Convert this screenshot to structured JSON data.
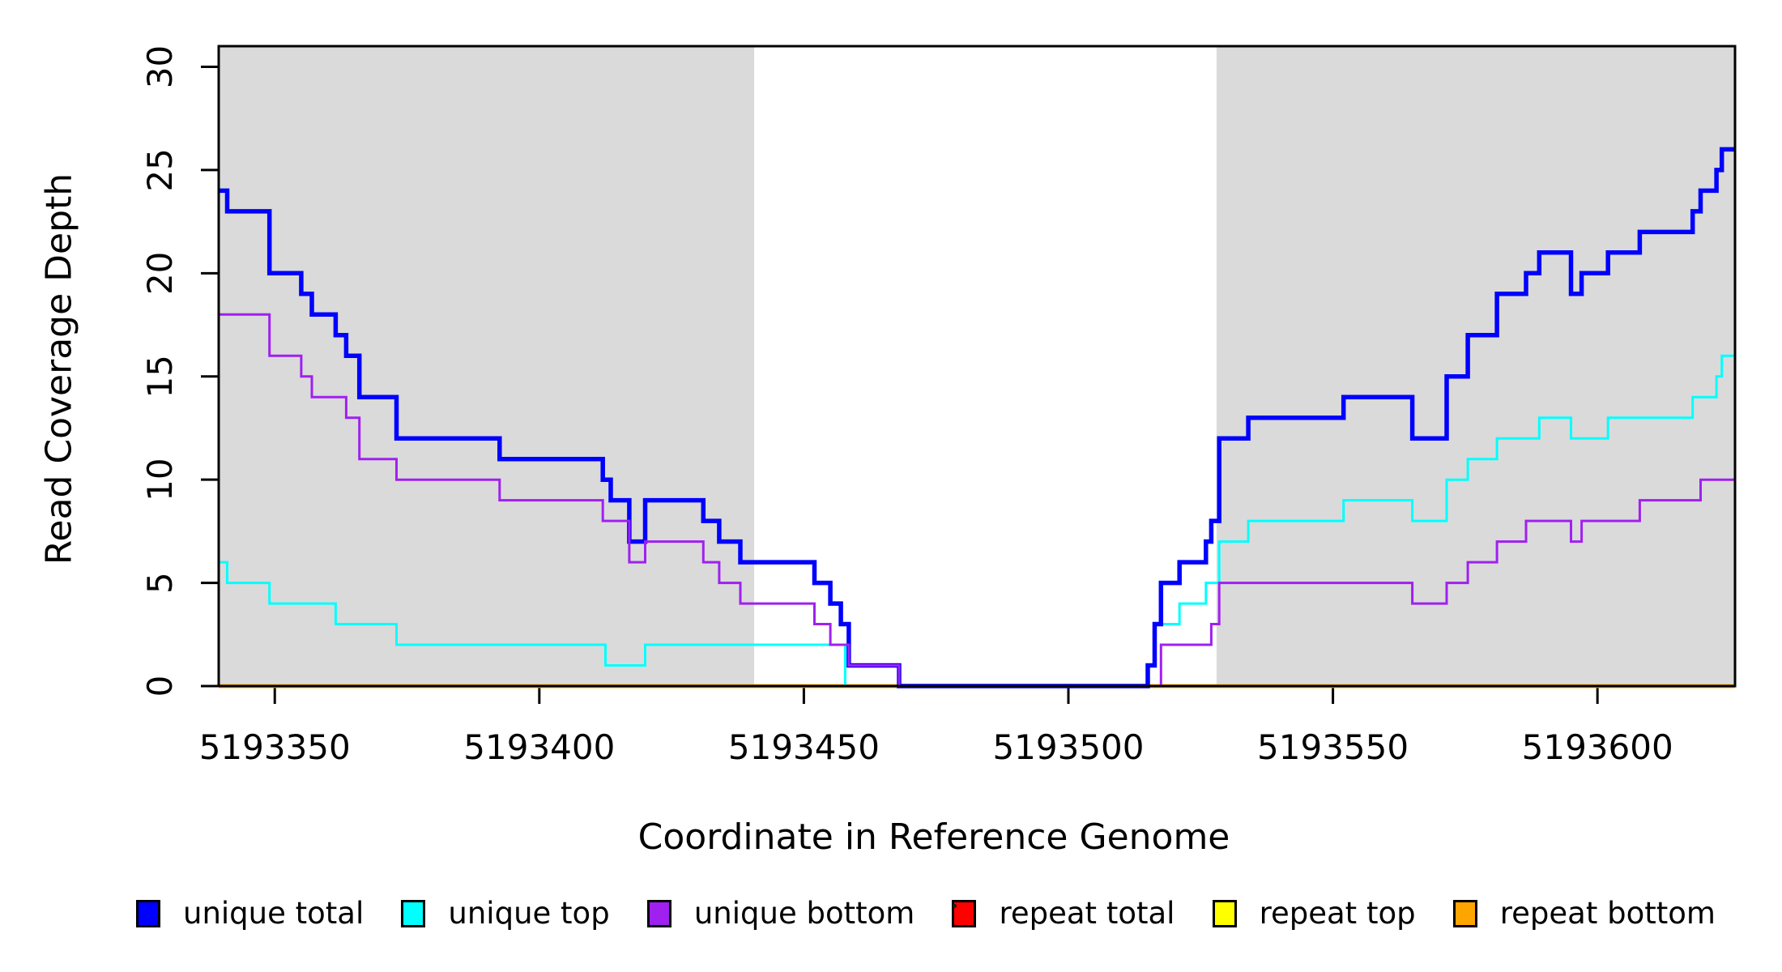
{
  "figure": {
    "title": "",
    "y_axis": {
      "label": "Read Coverage Depth",
      "ticks": [
        0,
        5,
        10,
        15,
        20,
        25,
        30
      ],
      "range": [
        0,
        31
      ]
    },
    "x_axis": {
      "label": "Coordinate in Reference Genome",
      "ticks": [
        5193350,
        5193400,
        5193450,
        5193500,
        5193550,
        5193600
      ],
      "range": [
        5193339.4,
        5193626
      ]
    },
    "legend": [
      {
        "label": "unique total",
        "color": "#0000FF"
      },
      {
        "label": "unique top",
        "color": "#00FFFF"
      },
      {
        "label": "unique bottom",
        "color": "#A020F0"
      },
      {
        "label": "repeat total",
        "color": "#FF0000"
      },
      {
        "label": "repeat top",
        "color": "#FFFF00"
      },
      {
        "label": "repeat bottom",
        "color": "#FFA500"
      }
    ]
  },
  "chart_data": {
    "type": "line",
    "subtype": "step-after",
    "title": "",
    "xlabel": "Coordinate in Reference Genome",
    "ylabel": "Read Coverage Depth",
    "xlim": [
      5193339.4,
      5193626
    ],
    "ylim": [
      0,
      31
    ],
    "grid": false,
    "legend_position": "bottom",
    "shaded_regions": {
      "color": "#DADADA",
      "comment": "gray background bands marking unique-mapping flank regions",
      "x_ranges": [
        [
          5193339.4,
          5193440.6
        ],
        [
          5193528,
          5193626
        ]
      ]
    },
    "draw_order": [
      "repeat total",
      "repeat top",
      "repeat bottom",
      "unique top",
      "unique total",
      "unique bottom"
    ],
    "series": [
      {
        "name": "unique total",
        "color": "#0000FF",
        "line_width": 5.5,
        "steps": [
          [
            5193339.4,
            24
          ],
          [
            5193341,
            23
          ],
          [
            5193349,
            20
          ],
          [
            5193355,
            19
          ],
          [
            5193357,
            18
          ],
          [
            5193361.5,
            17
          ],
          [
            5193363.5,
            16
          ],
          [
            5193366,
            14
          ],
          [
            5193373,
            12
          ],
          [
            5193392.5,
            11
          ],
          [
            5193412,
            10
          ],
          [
            5193413.5,
            9
          ],
          [
            5193417,
            7
          ],
          [
            5193420,
            9
          ],
          [
            5193431,
            8
          ],
          [
            5193434,
            7
          ],
          [
            5193438,
            6
          ],
          [
            5193452,
            5
          ],
          [
            5193455,
            4
          ],
          [
            5193457,
            3
          ],
          [
            5193458.5,
            1
          ],
          [
            5193468,
            0
          ],
          [
            5193515,
            1
          ],
          [
            5193516.3,
            3
          ],
          [
            5193517.5,
            5
          ],
          [
            5193521,
            6
          ],
          [
            5193526,
            7
          ],
          [
            5193527,
            8
          ],
          [
            5193528.5,
            12
          ],
          [
            5193534,
            13
          ],
          [
            5193552,
            14
          ],
          [
            5193565,
            12
          ],
          [
            5193571.5,
            15
          ],
          [
            5193575.5,
            17
          ],
          [
            5193581,
            19
          ],
          [
            5193586.5,
            20
          ],
          [
            5193589,
            21
          ],
          [
            5193595,
            19
          ],
          [
            5193597,
            20
          ],
          [
            5193602,
            21
          ],
          [
            5193608,
            22
          ],
          [
            5193618,
            23
          ],
          [
            5193619.5,
            24
          ],
          [
            5193622.5,
            25
          ],
          [
            5193623.5,
            26
          ]
        ]
      },
      {
        "name": "unique top",
        "color": "#00FFFF",
        "line_width": 3,
        "steps": [
          [
            5193339.4,
            6
          ],
          [
            5193341,
            5
          ],
          [
            5193349,
            4
          ],
          [
            5193361.5,
            3
          ],
          [
            5193373,
            2
          ],
          [
            5193412.5,
            1
          ],
          [
            5193420,
            2
          ],
          [
            5193457.8,
            0
          ],
          [
            5193515,
            1
          ],
          [
            5193516.3,
            3
          ],
          [
            5193521,
            4
          ],
          [
            5193526,
            5
          ],
          [
            5193528.5,
            7
          ],
          [
            5193534,
            8
          ],
          [
            5193552,
            9
          ],
          [
            5193565,
            8
          ],
          [
            5193571.5,
            10
          ],
          [
            5193575.5,
            11
          ],
          [
            5193581,
            12
          ],
          [
            5193589,
            13
          ],
          [
            5193595,
            12
          ],
          [
            5193602,
            13
          ],
          [
            5193618,
            14
          ],
          [
            5193622.5,
            15
          ],
          [
            5193623.5,
            16
          ]
        ]
      },
      {
        "name": "unique bottom",
        "color": "#A020F0",
        "line_width": 3,
        "steps": [
          [
            5193339.4,
            18
          ],
          [
            5193349,
            16
          ],
          [
            5193355,
            15
          ],
          [
            5193357,
            14
          ],
          [
            5193363.5,
            13
          ],
          [
            5193366,
            11
          ],
          [
            5193373,
            10
          ],
          [
            5193392.5,
            9
          ],
          [
            5193412,
            8
          ],
          [
            5193417,
            6
          ],
          [
            5193420,
            7
          ],
          [
            5193431,
            6
          ],
          [
            5193434,
            5
          ],
          [
            5193438,
            4
          ],
          [
            5193452,
            3
          ],
          [
            5193455,
            2
          ],
          [
            5193458.5,
            1
          ],
          [
            5193468,
            0
          ],
          [
            5193517.5,
            2
          ],
          [
            5193527,
            3
          ],
          [
            5193528.5,
            5
          ],
          [
            5193565,
            4
          ],
          [
            5193571.5,
            5
          ],
          [
            5193575.5,
            6
          ],
          [
            5193581,
            7
          ],
          [
            5193586.5,
            8
          ],
          [
            5193595,
            7
          ],
          [
            5193597,
            8
          ],
          [
            5193608,
            9
          ],
          [
            5193619.5,
            10
          ]
        ]
      },
      {
        "name": "repeat total",
        "color": "#FF0000",
        "line_width": 4.5,
        "steps": [
          [
            5193339.4,
            0
          ]
        ]
      },
      {
        "name": "repeat top",
        "color": "#FFFF00",
        "line_width": 4.5,
        "steps": [
          [
            5193339.4,
            0
          ]
        ]
      },
      {
        "name": "repeat bottom",
        "color": "#FFA500",
        "line_width": 4.5,
        "steps": [
          [
            5193339.4,
            0
          ]
        ]
      }
    ]
  }
}
